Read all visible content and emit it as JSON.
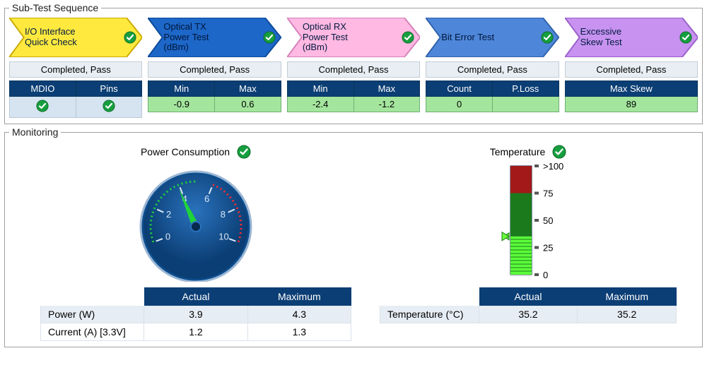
{
  "colors": {
    "navy_header": "#0b3e74",
    "pass_green_fill": "#a4e59d",
    "pass_green_border": "#6faf76",
    "panel_blue": "#e6edf4",
    "check_green": "#169e3f",
    "gauge_face": "#0d4e8f",
    "gauge_face2": "#0b3e74",
    "gauge_green": "#1fd43a",
    "gauge_red": "#ff2a2a",
    "gauge_text": "#d9e8f6",
    "thermo_bg": "#0b3e74",
    "thermo_green_dark": "#1b7a1b",
    "thermo_green_bright": "#5cff3a",
    "thermo_red": "#a31919"
  },
  "sequence": {
    "legend": "Sub-Test Sequence",
    "items": [
      {
        "title": "I/O Interface\nQuick Check",
        "chevron": {
          "fill": "#ffe93e",
          "stroke": "#caa900",
          "text_class": "dark"
        },
        "status": "Completed, Pass",
        "cols": [
          "MDIO",
          "Pins"
        ],
        "cells": [
          {
            "type": "icon"
          },
          {
            "type": "icon"
          }
        ]
      },
      {
        "title": "Optical TX\nPower Test\n(dBm)",
        "chevron": {
          "fill": "#1d67c8",
          "stroke": "#0d4b9a",
          "text_class": "onblue"
        },
        "status": "Completed, Pass",
        "cols": [
          "Min",
          "Max"
        ],
        "cells": [
          {
            "type": "val",
            "val": "-0.9"
          },
          {
            "type": "val",
            "val": "0.6"
          }
        ]
      },
      {
        "title": "Optical RX\nPower Test\n(dBm)",
        "chevron": {
          "fill": "#ffb9e2",
          "stroke": "#d47fb8",
          "text_class": "dark"
        },
        "status": "Completed, Pass",
        "cols": [
          "Min",
          "Max"
        ],
        "cells": [
          {
            "type": "val",
            "val": "-2.4"
          },
          {
            "type": "val",
            "val": "-1.2"
          }
        ]
      },
      {
        "title": "Bit Error Test",
        "chevron": {
          "fill": "#4e86d9",
          "stroke": "#2f62ac",
          "text_class": "onblue"
        },
        "status": "Completed, Pass",
        "cols": [
          "Count",
          "P.Loss"
        ],
        "cells": [
          {
            "type": "val",
            "val": "0"
          },
          {
            "type": "blank"
          }
        ]
      },
      {
        "title": "Excessive\nSkew Test",
        "chevron": {
          "fill": "#c792f0",
          "stroke": "#9a5fc9",
          "text_class": "dark"
        },
        "status": "Completed, Pass",
        "cols": [
          "Max Skew"
        ],
        "cells": [
          {
            "type": "val",
            "val": "89"
          }
        ]
      }
    ]
  },
  "monitoring": {
    "legend": "Monitoring",
    "power": {
      "title": "Power Consumption",
      "gauge": {
        "min": 0,
        "max": 10,
        "ticks": [
          0,
          2,
          4,
          6,
          8,
          10
        ],
        "green_from": 0,
        "green_to": 5,
        "red_from": 6,
        "red_to": 10,
        "needle_value": 3.9
      },
      "table": {
        "headers": [
          "Actual",
          "Maximum"
        ],
        "rows": [
          {
            "label": "Power (W)",
            "actual": "3.9",
            "max": "4.3"
          },
          {
            "label": "Current (A) [3.3V]",
            "actual": "1.2",
            "max": "1.3"
          }
        ]
      }
    },
    "temperature": {
      "title": "Temperature",
      "bar": {
        "scale_min": 0,
        "scale_max": 100,
        "ticks": [
          ">100",
          "75",
          "50",
          "25",
          "0"
        ],
        "green_to": 75,
        "red_from": 75,
        "value": 35.2
      },
      "table": {
        "headers": [
          "Actual",
          "Maximum"
        ],
        "rows": [
          {
            "label": "Temperature (°C)",
            "actual": "35.2",
            "max": "35.2"
          }
        ]
      }
    }
  }
}
